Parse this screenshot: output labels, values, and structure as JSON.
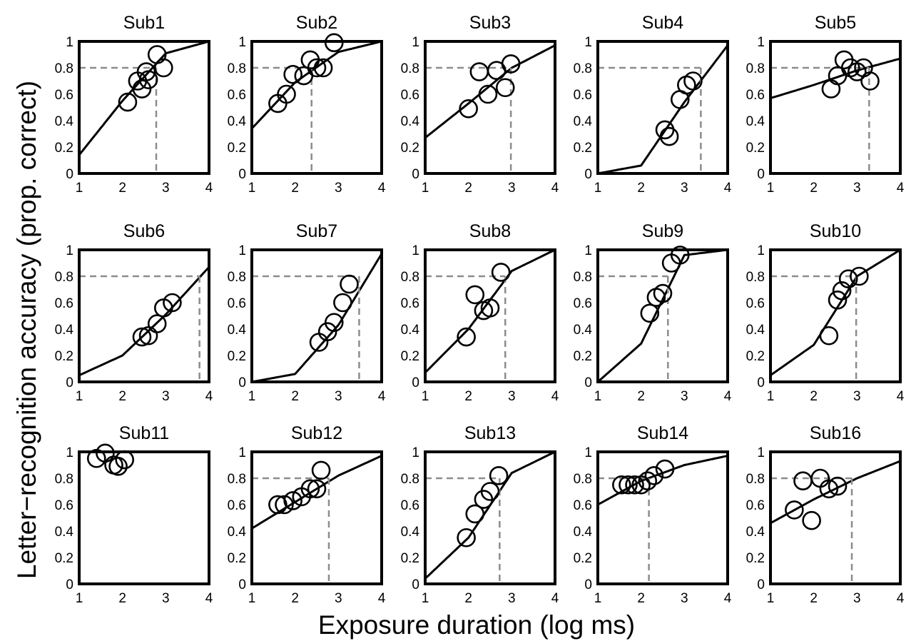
{
  "chart_data": {
    "type": "scatter",
    "xlabel": "Exposure duration (log ms)",
    "ylabel": "Letter−recognition accuracy (prop. correct)",
    "xlim": [
      1,
      4
    ],
    "ylim": [
      0,
      1
    ],
    "xticks": [
      "1",
      "2",
      "3",
      "4"
    ],
    "yticks": [
      "0",
      "0.2",
      "0.4",
      "0.6",
      "0.8",
      "1"
    ],
    "threshold_criterion": 0.8,
    "colors": {
      "fit": "#000000",
      "threshold": "#8c8c8c",
      "points": "#000000"
    },
    "panels": [
      {
        "title": "Sub1",
        "threshold": 2.78,
        "curve_y_at": [
          0.14,
          0.55,
          0.91,
          1.0
        ],
        "points": [
          [
            2.12,
            0.54
          ],
          [
            2.35,
            0.7
          ],
          [
            2.45,
            0.64
          ],
          [
            2.55,
            0.77
          ],
          [
            2.6,
            0.71
          ],
          [
            2.8,
            0.9
          ],
          [
            2.95,
            0.8
          ]
        ]
      },
      {
        "title": "Sub2",
        "threshold": 2.38,
        "curve_y_at": [
          0.34,
          0.69,
          0.92,
          1.0
        ],
        "points": [
          [
            1.6,
            0.53
          ],
          [
            1.8,
            0.6
          ],
          [
            1.95,
            0.75
          ],
          [
            2.2,
            0.74
          ],
          [
            2.35,
            0.86
          ],
          [
            2.5,
            0.8
          ],
          [
            2.65,
            0.8
          ],
          [
            2.9,
            0.99
          ]
        ]
      },
      {
        "title": "Sub3",
        "threshold": 2.98,
        "curve_y_at": [
          0.27,
          0.53,
          0.8,
          0.97
        ],
        "points": [
          [
            2.0,
            0.49
          ],
          [
            2.25,
            0.77
          ],
          [
            2.45,
            0.6
          ],
          [
            2.65,
            0.78
          ],
          [
            2.85,
            0.65
          ],
          [
            2.98,
            0.83
          ]
        ]
      },
      {
        "title": "Sub4",
        "threshold": 3.38,
        "curve_y_at": [
          0.0,
          0.06,
          0.54,
          0.97
        ],
        "points": [
          [
            2.55,
            0.33
          ],
          [
            2.65,
            0.28
          ],
          [
            2.9,
            0.56
          ],
          [
            3.05,
            0.67
          ],
          [
            3.2,
            0.7
          ]
        ]
      },
      {
        "title": "Sub5",
        "threshold": 3.28,
        "curve_y_at": [
          0.57,
          0.67,
          0.78,
          0.87
        ],
        "points": [
          [
            2.4,
            0.64
          ],
          [
            2.55,
            0.74
          ],
          [
            2.7,
            0.86
          ],
          [
            2.85,
            0.8
          ],
          [
            3.0,
            0.77
          ],
          [
            3.15,
            0.8
          ],
          [
            3.3,
            0.7
          ]
        ]
      },
      {
        "title": "Sub6",
        "threshold": 3.78,
        "curve_y_at": [
          0.05,
          0.2,
          0.51,
          0.87
        ],
        "points": [
          [
            2.45,
            0.34
          ],
          [
            2.6,
            0.35
          ],
          [
            2.8,
            0.44
          ],
          [
            2.95,
            0.56
          ],
          [
            3.15,
            0.6
          ]
        ]
      },
      {
        "title": "Sub7",
        "threshold": 3.48,
        "curve_y_at": [
          0.0,
          0.06,
          0.43,
          0.97
        ],
        "points": [
          [
            2.55,
            0.3
          ],
          [
            2.75,
            0.38
          ],
          [
            2.9,
            0.45
          ],
          [
            3.1,
            0.6
          ],
          [
            3.25,
            0.74
          ]
        ]
      },
      {
        "title": "Sub8",
        "threshold": 2.85,
        "curve_y_at": [
          0.07,
          0.4,
          0.84,
          1.0
        ],
        "points": [
          [
            1.95,
            0.34
          ],
          [
            2.15,
            0.66
          ],
          [
            2.35,
            0.54
          ],
          [
            2.5,
            0.56
          ],
          [
            2.75,
            0.83
          ]
        ]
      },
      {
        "title": "Sub9",
        "threshold": 2.62,
        "curve_y_at": [
          0.0,
          0.29,
          0.96,
          1.0
        ],
        "points": [
          [
            2.2,
            0.52
          ],
          [
            2.35,
            0.64
          ],
          [
            2.5,
            0.67
          ],
          [
            2.7,
            0.9
          ],
          [
            2.9,
            0.96
          ]
        ]
      },
      {
        "title": "Sub10",
        "threshold": 2.98,
        "curve_y_at": [
          0.05,
          0.28,
          0.8,
          1.0
        ],
        "points": [
          [
            2.35,
            0.35
          ],
          [
            2.55,
            0.62
          ],
          [
            2.65,
            0.69
          ],
          [
            2.8,
            0.78
          ],
          [
            3.05,
            0.8
          ]
        ]
      },
      {
        "title": "Sub11",
        "threshold": null,
        "curve_y_at": [
          1.0,
          1.0,
          1.0,
          1.0
        ],
        "points": [
          [
            1.4,
            0.95
          ],
          [
            1.6,
            0.99
          ],
          [
            1.8,
            0.9
          ],
          [
            1.9,
            0.89
          ],
          [
            2.05,
            0.94
          ]
        ]
      },
      {
        "title": "Sub12",
        "threshold": 2.78,
        "curve_y_at": [
          0.42,
          0.62,
          0.82,
          0.97
        ],
        "points": [
          [
            1.6,
            0.6
          ],
          [
            1.75,
            0.6
          ],
          [
            1.95,
            0.63
          ],
          [
            2.15,
            0.66
          ],
          [
            2.35,
            0.72
          ],
          [
            2.5,
            0.72
          ],
          [
            2.6,
            0.86
          ]
        ]
      },
      {
        "title": "Sub13",
        "threshold": 2.72,
        "curve_y_at": [
          0.04,
          0.35,
          0.84,
          1.0
        ],
        "points": [
          [
            1.95,
            0.35
          ],
          [
            2.15,
            0.53
          ],
          [
            2.35,
            0.64
          ],
          [
            2.5,
            0.7
          ],
          [
            2.7,
            0.82
          ]
        ]
      },
      {
        "title": "Sub14",
        "threshold": 2.18,
        "curve_y_at": [
          0.6,
          0.78,
          0.9,
          0.97
        ],
        "points": [
          [
            1.55,
            0.75
          ],
          [
            1.7,
            0.75
          ],
          [
            1.85,
            0.75
          ],
          [
            2.0,
            0.75
          ],
          [
            2.15,
            0.78
          ],
          [
            2.3,
            0.82
          ],
          [
            2.55,
            0.87
          ]
        ]
      },
      {
        "title": "Sub16",
        "threshold": 2.88,
        "curve_y_at": [
          0.46,
          0.64,
          0.8,
          0.93
        ],
        "points": [
          [
            1.55,
            0.56
          ],
          [
            1.75,
            0.78
          ],
          [
            1.95,
            0.48
          ],
          [
            2.15,
            0.8
          ],
          [
            2.35,
            0.72
          ],
          [
            2.55,
            0.74
          ]
        ]
      }
    ]
  }
}
